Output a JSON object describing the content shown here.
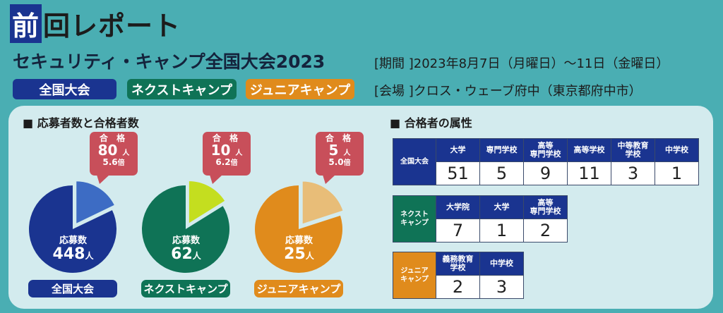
{
  "header": {
    "title_first": "前",
    "title_rest": "回レポート",
    "subtitle": "セキュリティ・キャンプ全国大会2023",
    "period": "[期間 ]2023年8月7日（月曜日）～11日（金曜日）",
    "venue": "[会場 ]クロス・ウェーブ府中（東京都府中市）",
    "badges": [
      "全国大会",
      "ネクストキャンプ",
      "ジュニアキャンプ"
    ]
  },
  "colors": {
    "national": "#1a3490",
    "next": "#0f7356",
    "junior": "#e08b1c"
  },
  "sections": {
    "applicants": "■ 応募者数と合格者数",
    "attributes": "■ 合格者の属性"
  },
  "pies": [
    {
      "name": "全国大会",
      "applicants_label": "応募数",
      "applicants": "448",
      "unit": "人",
      "passed_label": "合 格",
      "passed": "80",
      "ratio": "5.6",
      "ratio_unit": "倍",
      "color": "#1a3490",
      "slice_color": "#3d6cc4"
    },
    {
      "name": "ネクストキャンプ",
      "applicants_label": "応募数",
      "applicants": "62",
      "unit": "人",
      "passed_label": "合 格",
      "passed": "10",
      "ratio": "6.2",
      "ratio_unit": "倍",
      "color": "#0f7356",
      "slice_color": "#c4de1f"
    },
    {
      "name": "ジュニアキャンプ",
      "applicants_label": "応募数",
      "applicants": "25",
      "unit": "人",
      "passed_label": "合 格",
      "passed": "5",
      "ratio": "5.0",
      "ratio_unit": "倍",
      "color": "#e08b1c",
      "slice_color": "#e8bd78"
    }
  ],
  "tables": [
    {
      "label": "全国大会",
      "headers": [
        "大学",
        "専門学校",
        "高等\n専門学校",
        "高等学校",
        "中等教育\n学校",
        "中学校"
      ],
      "values": [
        "51",
        "5",
        "9",
        "11",
        "3",
        "1"
      ]
    },
    {
      "label": "ネクスト\nキャンプ",
      "headers": [
        "大学院",
        "大学",
        "高等\n専門学校"
      ],
      "values": [
        "7",
        "1",
        "2"
      ]
    },
    {
      "label": "ジュニア\nキャンプ",
      "headers": [
        "義務教育\n学校",
        "中学校"
      ],
      "values": [
        "2",
        "3"
      ]
    }
  ]
}
